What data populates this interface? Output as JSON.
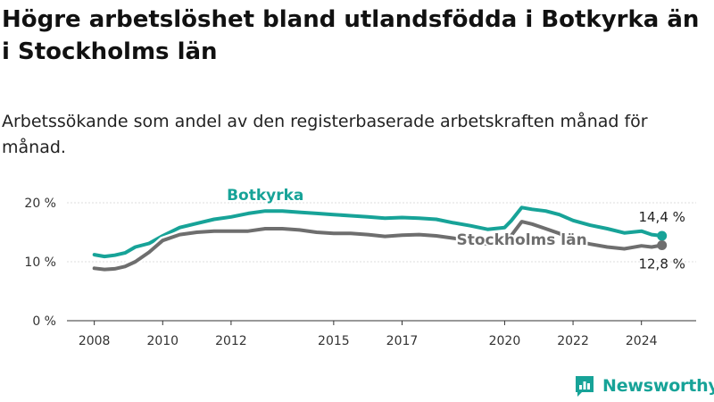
{
  "title": "Högre arbetslöshet bland utlandsfödda i Botkyrka än i Stockholms län",
  "subtitle": "Arbetssökande som andel av den registerbaserade arbetskraften månad för månad.",
  "brand": {
    "name": "Newsworthy",
    "color": "#17a398"
  },
  "chart_data": {
    "type": "line",
    "xlim": [
      2007.2,
      2025.6
    ],
    "ylim": [
      0,
      20
    ],
    "yticks": [
      {
        "value": 0,
        "label": "0 %"
      },
      {
        "value": 10,
        "label": "10 %"
      },
      {
        "value": 20,
        "label": "20 %"
      }
    ],
    "xticks": [
      {
        "value": 2008,
        "label": "2008"
      },
      {
        "value": 2010,
        "label": "2010"
      },
      {
        "value": 2012,
        "label": "2012"
      },
      {
        "value": 2015,
        "label": "2015"
      },
      {
        "value": 2017,
        "label": "2017"
      },
      {
        "value": 2020,
        "label": "2020"
      },
      {
        "value": 2022,
        "label": "2022"
      },
      {
        "value": 2024,
        "label": "2024"
      }
    ],
    "series": [
      {
        "name": "Botkyrka",
        "color": "#17a398",
        "end_label": "14,4 %",
        "x": [
          2008.0,
          2008.3,
          2008.6,
          2008.9,
          2009.2,
          2009.6,
          2010.0,
          2010.5,
          2011.0,
          2011.5,
          2012.0,
          2012.5,
          2013.0,
          2013.5,
          2014.0,
          2014.5,
          2015.0,
          2015.5,
          2016.0,
          2016.5,
          2017.0,
          2017.5,
          2018.0,
          2018.5,
          2019.0,
          2019.5,
          2020.0,
          2020.2,
          2020.5,
          2020.8,
          2021.2,
          2021.6,
          2022.0,
          2022.5,
          2023.0,
          2023.5,
          2024.0,
          2024.3,
          2024.6
        ],
        "y": [
          11.2,
          10.9,
          11.1,
          11.5,
          12.5,
          13.1,
          14.4,
          15.8,
          16.5,
          17.2,
          17.6,
          18.2,
          18.6,
          18.6,
          18.4,
          18.2,
          18.0,
          17.8,
          17.6,
          17.4,
          17.5,
          17.4,
          17.2,
          16.6,
          16.1,
          15.5,
          15.8,
          17.0,
          19.2,
          18.9,
          18.6,
          18.0,
          17.0,
          16.2,
          15.6,
          14.9,
          15.2,
          14.6,
          14.4
        ]
      },
      {
        "name": "Stockholms län",
        "color": "#6e6e6e",
        "end_label": "12,8 %",
        "x": [
          2008.0,
          2008.3,
          2008.6,
          2008.9,
          2009.2,
          2009.6,
          2010.0,
          2010.5,
          2011.0,
          2011.5,
          2012.0,
          2012.5,
          2013.0,
          2013.5,
          2014.0,
          2014.5,
          2015.0,
          2015.5,
          2016.0,
          2016.5,
          2017.0,
          2017.5,
          2018.0,
          2018.5,
          2019.0,
          2019.5,
          2020.0,
          2020.2,
          2020.5,
          2020.8,
          2021.2,
          2021.6,
          2022.0,
          2022.5,
          2023.0,
          2023.5,
          2024.0,
          2024.3,
          2024.6
        ],
        "y": [
          8.9,
          8.7,
          8.8,
          9.2,
          10.0,
          11.6,
          13.6,
          14.6,
          15.0,
          15.2,
          15.2,
          15.2,
          15.6,
          15.6,
          15.4,
          15.0,
          14.8,
          14.8,
          14.6,
          14.3,
          14.5,
          14.6,
          14.4,
          14.0,
          13.5,
          13.0,
          13.2,
          14.5,
          16.8,
          16.4,
          15.6,
          14.8,
          13.6,
          13.0,
          12.5,
          12.2,
          12.7,
          12.5,
          12.8
        ]
      }
    ]
  }
}
